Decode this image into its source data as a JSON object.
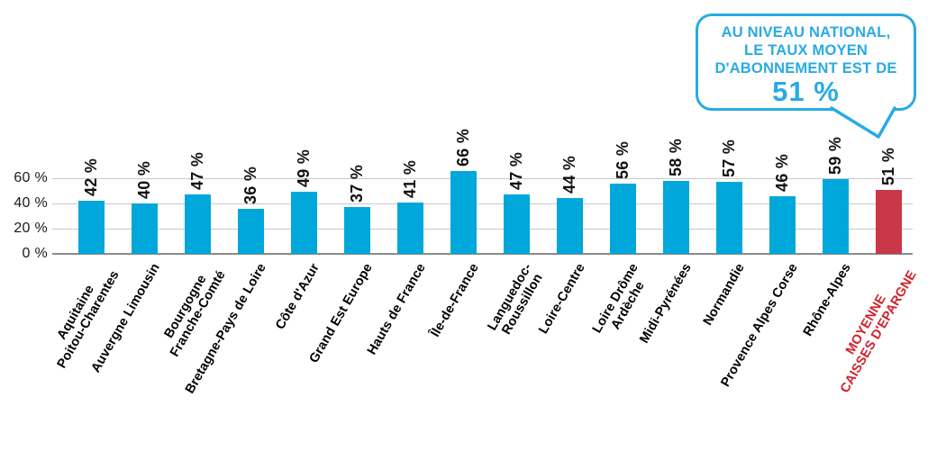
{
  "callout": {
    "lines": [
      "AU NIVEAU NATIONAL,",
      "LE TAUX MOYEN",
      "D'ABONNEMENT EST DE"
    ],
    "value": "51 %",
    "color": "#29ABE2"
  },
  "chart_data": {
    "type": "bar",
    "title": "",
    "unit": "%",
    "categories": [
      "Aquitaine\nPoitou-Charentes",
      "Auvergne Limousin",
      "Bourgogne\nFranche-Comté",
      "Bretagne-Pays de Loire",
      "Côte d'Azur",
      "Grand Est Europe",
      "Hauts de France",
      "Île-de-France",
      "Languedoc-\nRoussillon",
      "Loire-Centre",
      "Loire Drôme\nArdèche",
      "Midi-Pyrénées",
      "Normandie",
      "Provence Alpes Corse",
      "Rhône-Alpes",
      "MOYENNE\nCAISSES D'EPARGNE"
    ],
    "values": [
      42,
      40,
      47,
      36,
      49,
      37,
      41,
      66,
      47,
      44,
      56,
      58,
      57,
      46,
      59,
      51
    ],
    "value_labels": [
      "42 %",
      "40 %",
      "47 %",
      "36 %",
      "49 %",
      "37 %",
      "41 %",
      "66 %",
      "47 %",
      "44 %",
      "56 %",
      "58 %",
      "57 %",
      "46 %",
      "59 %",
      "51 %"
    ],
    "yticks": [
      {
        "value": 0,
        "label": "0 %"
      },
      {
        "value": 20,
        "label": "20 %"
      },
      {
        "value": 40,
        "label": "40 %"
      },
      {
        "value": 60,
        "label": "60 %"
      }
    ],
    "ylim": [
      0,
      70
    ],
    "grid": true,
    "bar_color": "#00A7DA",
    "highlight_index": 15,
    "highlight_bar_color": "#C93749",
    "highlight_label_color": "#D2232A"
  }
}
